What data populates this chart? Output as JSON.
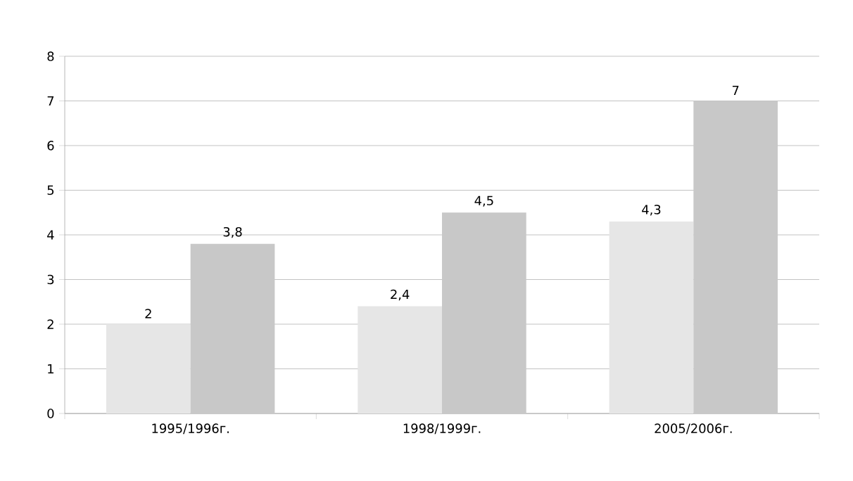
{
  "chart_data": {
    "type": "bar",
    "categories": [
      "1995/1996г.",
      "1998/1999г.",
      "2005/2006г."
    ],
    "series": [
      {
        "color": "#e6e6e6",
        "values": [
          2,
          2.4,
          4.3
        ],
        "value_labels": [
          "2",
          "2,4",
          "4,3"
        ]
      },
      {
        "color": "#c8c8c8",
        "values": [
          3.8,
          4.5,
          7
        ],
        "value_labels": [
          "3,8",
          "4,5",
          "7"
        ]
      }
    ],
    "ylim": [
      0,
      8
    ],
    "yticks": [
      0,
      1,
      2,
      3,
      4,
      5,
      6,
      7,
      8
    ],
    "grid": "y"
  }
}
